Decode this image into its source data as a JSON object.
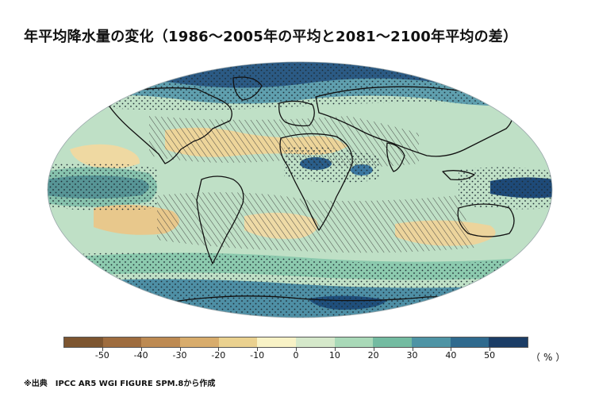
{
  "title": "年平均降水量の変化（1986〜2005年の平均と2081〜2100年平均の差）",
  "legend": {
    "unit": "（%）",
    "colors": [
      "#7d5530",
      "#9e6c3e",
      "#bd8a52",
      "#d8ac6c",
      "#ead18f",
      "#f8f2c6",
      "#d5e8ca",
      "#a9d9b8",
      "#73bba1",
      "#4e94a5",
      "#2f6a8e",
      "#1b3d66"
    ],
    "tick_labels": [
      "-50",
      "-40",
      "-30",
      "-20",
      "-10",
      "0",
      "10",
      "20",
      "30",
      "40",
      "50"
    ]
  },
  "map": {
    "projection": "Robinson",
    "stippling": "significant change",
    "hatching": "small change"
  },
  "source": "※出典　IPCC AR5 WGI FIGURE SPM.8から作成"
}
